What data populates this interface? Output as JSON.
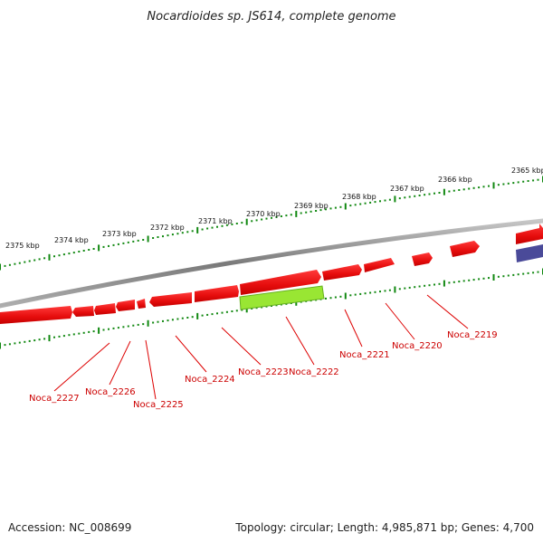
{
  "title": "Nocardioides sp. JS614, complete genome",
  "accession_text": "Accession: NC_008699",
  "summary_text": "Topology: circular; Length: 4,985,871 bp; Genes: 4,700",
  "colors": {
    "backbone": "#8a8a8a",
    "forward_gene": "#ee1111",
    "reverse_gene": "#ee1111",
    "highlight_gene": "#99e633",
    "blue_feature": "#4a4a99",
    "tick": "#118811",
    "label": "#cc0000"
  },
  "scale_labels": [
    "2365 kbp",
    "2366 kbp",
    "2367 kbp",
    "2368 kbp",
    "2369 kbp",
    "2370 kbp",
    "2371 kbp",
    "2372 kbp",
    "2373 kbp",
    "2374 kbp",
    "2375 kbp"
  ],
  "gene_labels": [
    "Noca_2219",
    "Noca_2220",
    "Noca_2221",
    "Noca_2222",
    "Noca_2223",
    "Noca_2224",
    "Noca_2225",
    "Noca_2226",
    "Noca_2227"
  ]
}
